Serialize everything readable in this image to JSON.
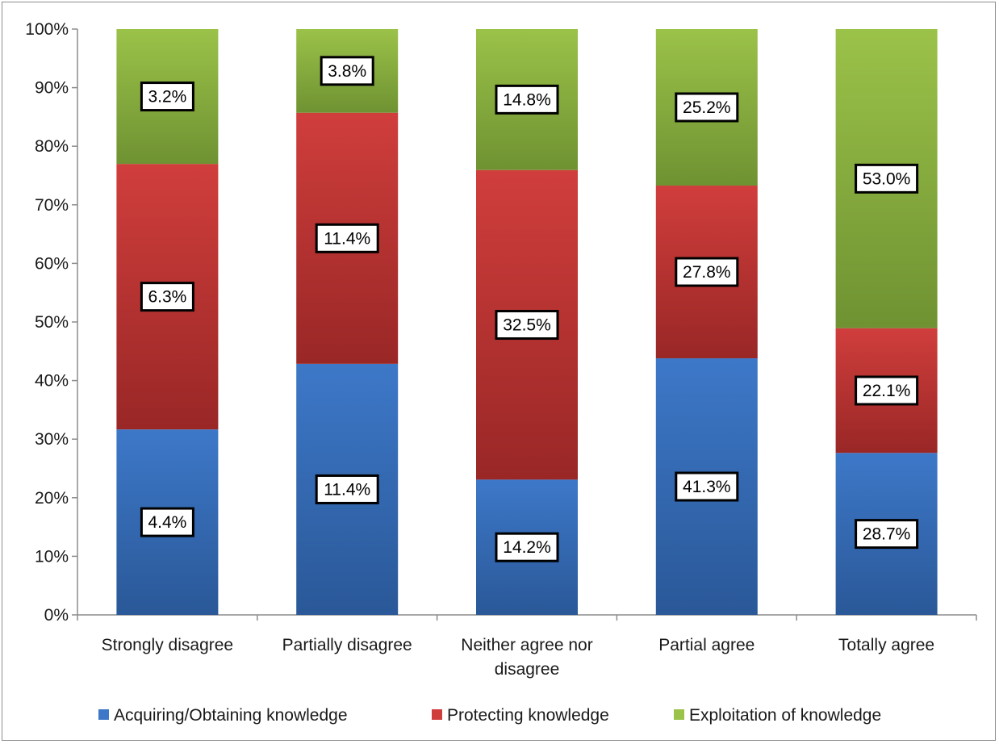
{
  "chart_data": {
    "type": "bar",
    "stacked": true,
    "percent_scale": true,
    "categories": [
      [
        "Strongly disagree"
      ],
      [
        "Partially disagree"
      ],
      [
        "Neither agree nor",
        "disagree"
      ],
      [
        "Partial agree"
      ],
      [
        "Totally agree"
      ]
    ],
    "series": [
      {
        "name": "Acquiring/Obtaining knowledge",
        "color": "#3d78c8",
        "color_dark": "#2a5898",
        "values": [
          4.4,
          11.4,
          14.2,
          41.3,
          28.7
        ],
        "labels": [
          "4.4%",
          "11.4%",
          "14.2%",
          "41.3%",
          "28.7%"
        ]
      },
      {
        "name": "Protecting knowledge",
        "color": "#d03e3c",
        "color_dark": "#992726",
        "values": [
          6.3,
          11.4,
          32.5,
          27.8,
          22.1
        ],
        "labels": [
          "6.3%",
          "11.4%",
          "32.5%",
          "27.8%",
          "22.1%"
        ]
      },
      {
        "name": "Exploitation of knowledge",
        "color": "#9bc249",
        "color_dark": "#6f9232",
        "values": [
          3.2,
          3.8,
          14.8,
          25.2,
          53.0
        ],
        "labels": [
          "3.2%",
          "3.8%",
          "14.8%",
          "25.2%",
          "53.0%"
        ]
      }
    ],
    "yticks": [
      "0%",
      "10%",
      "20%",
      "30%",
      "40%",
      "50%",
      "60%",
      "70%",
      "80%",
      "90%",
      "100%"
    ],
    "ylim": [
      0,
      100
    ],
    "grid": false,
    "legend": "bottom",
    "title": "",
    "xlabel": "",
    "ylabel": ""
  }
}
